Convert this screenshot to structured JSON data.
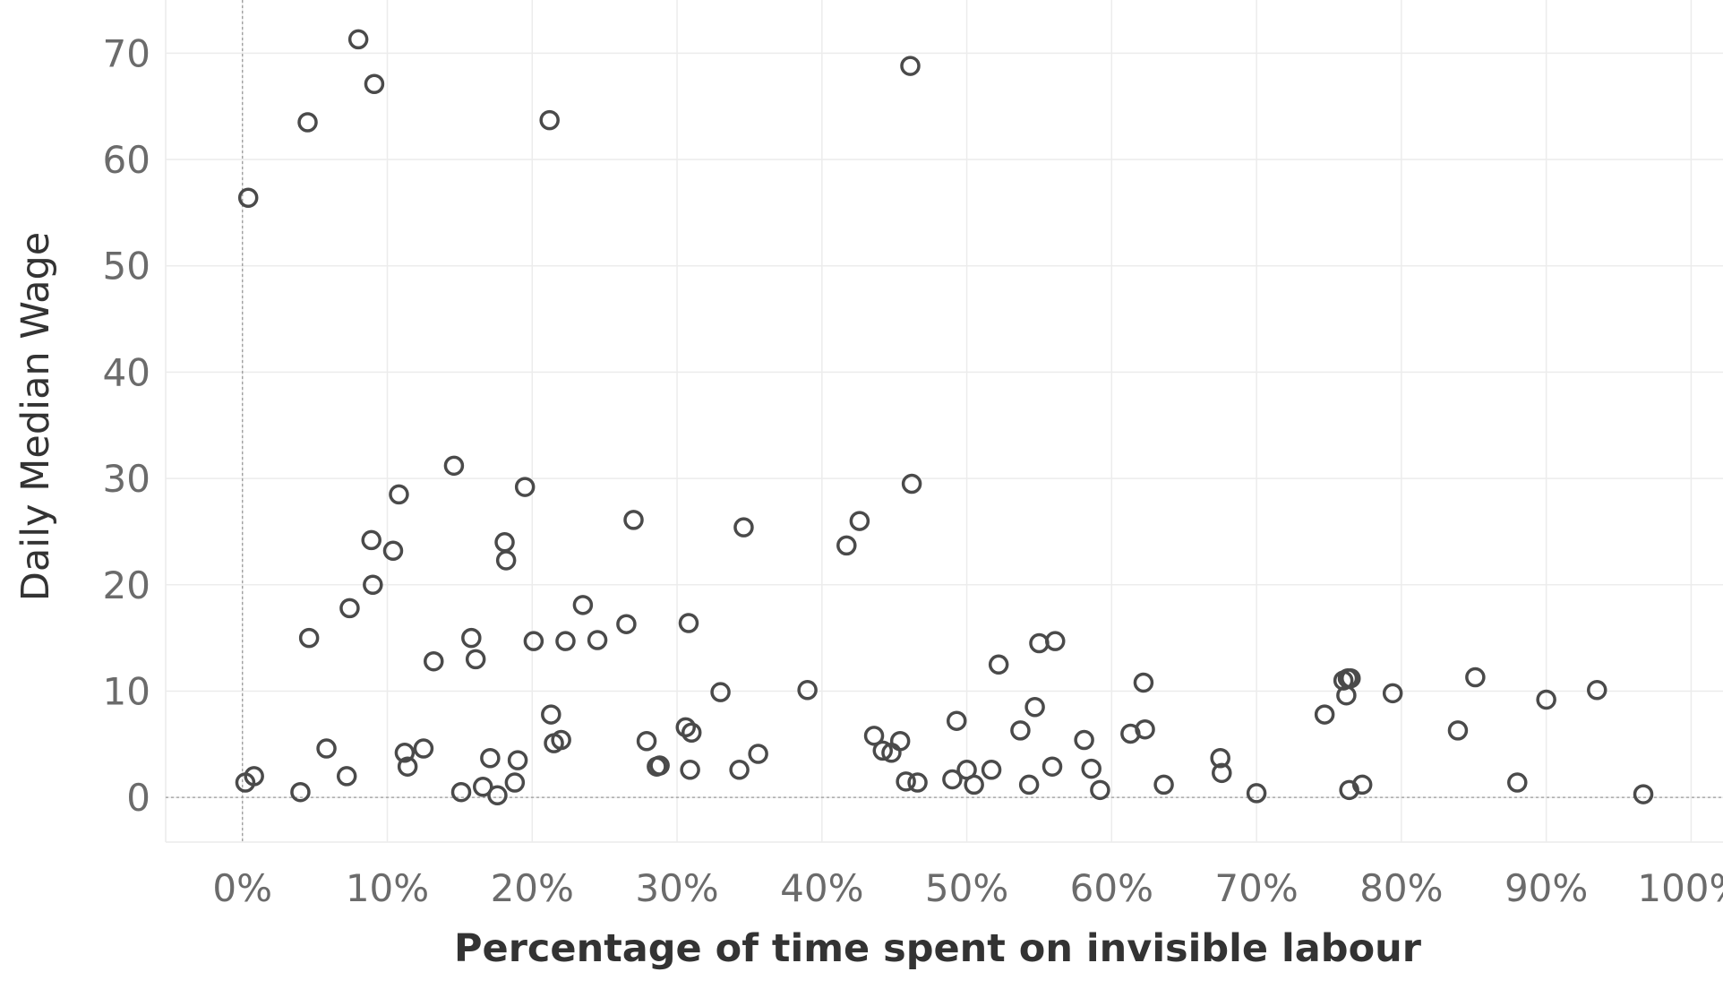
{
  "chart_data": {
    "type": "scatter",
    "xlabel": "Percentage of time spent on invisible labour",
    "ylabel": "Daily Median Wage",
    "xlim": [
      -0.053,
      1.022
    ],
    "ylim": [
      -4.2,
      75
    ],
    "x_ticks": [
      {
        "value": 0.0,
        "label": "0%"
      },
      {
        "value": 0.1,
        "label": "10%"
      },
      {
        "value": 0.2,
        "label": "20%"
      },
      {
        "value": 0.3,
        "label": "30%"
      },
      {
        "value": 0.4,
        "label": "40%"
      },
      {
        "value": 0.5,
        "label": "50%"
      },
      {
        "value": 0.6,
        "label": "60%"
      },
      {
        "value": 0.7,
        "label": "70%"
      },
      {
        "value": 0.8,
        "label": "80%"
      },
      {
        "value": 0.9,
        "label": "90%"
      },
      {
        "value": 1.0,
        "label": "100%"
      }
    ],
    "y_ticks": [
      {
        "value": 0,
        "label": "0"
      },
      {
        "value": 10,
        "label": "10"
      },
      {
        "value": 20,
        "label": "20"
      },
      {
        "value": 30,
        "label": "30"
      },
      {
        "value": 40,
        "label": "40"
      },
      {
        "value": 50,
        "label": "50"
      },
      {
        "value": 60,
        "label": "60"
      },
      {
        "value": 70,
        "label": "70"
      }
    ],
    "grid": true,
    "zero_reference_lines": true,
    "colors": {
      "marker_stroke": "#4a4a4a",
      "grid": "#ececec",
      "zero_line": "#9a9a9a"
    },
    "points": [
      {
        "x": 0.002,
        "y": 1.4
      },
      {
        "x": 0.004,
        "y": 56.4
      },
      {
        "x": 0.008,
        "y": 2.0
      },
      {
        "x": 0.04,
        "y": 0.5
      },
      {
        "x": 0.045,
        "y": 63.5
      },
      {
        "x": 0.046,
        "y": 15.0
      },
      {
        "x": 0.058,
        "y": 4.6
      },
      {
        "x": 0.072,
        "y": 2.0
      },
      {
        "x": 0.074,
        "y": 17.8
      },
      {
        "x": 0.08,
        "y": 71.3
      },
      {
        "x": 0.089,
        "y": 24.2
      },
      {
        "x": 0.09,
        "y": 20.0
      },
      {
        "x": 0.091,
        "y": 67.1
      },
      {
        "x": 0.104,
        "y": 23.2
      },
      {
        "x": 0.108,
        "y": 28.5
      },
      {
        "x": 0.112,
        "y": 4.2
      },
      {
        "x": 0.114,
        "y": 2.9
      },
      {
        "x": 0.125,
        "y": 4.6
      },
      {
        "x": 0.132,
        "y": 12.8
      },
      {
        "x": 0.146,
        "y": 31.2
      },
      {
        "x": 0.151,
        "y": 0.5
      },
      {
        "x": 0.158,
        "y": 15.0
      },
      {
        "x": 0.161,
        "y": 13.0
      },
      {
        "x": 0.166,
        "y": 1.0
      },
      {
        "x": 0.171,
        "y": 3.7
      },
      {
        "x": 0.176,
        "y": 0.2
      },
      {
        "x": 0.181,
        "y": 24.0
      },
      {
        "x": 0.182,
        "y": 22.3
      },
      {
        "x": 0.188,
        "y": 1.4
      },
      {
        "x": 0.19,
        "y": 3.5
      },
      {
        "x": 0.195,
        "y": 29.2
      },
      {
        "x": 0.201,
        "y": 14.7
      },
      {
        "x": 0.212,
        "y": 63.7
      },
      {
        "x": 0.213,
        "y": 7.8
      },
      {
        "x": 0.215,
        "y": 5.1
      },
      {
        "x": 0.22,
        "y": 5.4
      },
      {
        "x": 0.223,
        "y": 14.7
      },
      {
        "x": 0.235,
        "y": 18.1
      },
      {
        "x": 0.245,
        "y": 14.8
      },
      {
        "x": 0.265,
        "y": 16.3
      },
      {
        "x": 0.27,
        "y": 26.1
      },
      {
        "x": 0.279,
        "y": 5.3
      },
      {
        "x": 0.286,
        "y": 2.9
      },
      {
        "x": 0.288,
        "y": 3.0
      },
      {
        "x": 0.306,
        "y": 6.6
      },
      {
        "x": 0.308,
        "y": 16.4
      },
      {
        "x": 0.309,
        "y": 2.6
      },
      {
        "x": 0.31,
        "y": 6.1
      },
      {
        "x": 0.33,
        "y": 9.9
      },
      {
        "x": 0.343,
        "y": 2.6
      },
      {
        "x": 0.346,
        "y": 25.4
      },
      {
        "x": 0.356,
        "y": 4.1
      },
      {
        "x": 0.39,
        "y": 10.1
      },
      {
        "x": 0.417,
        "y": 23.7
      },
      {
        "x": 0.426,
        "y": 26.0
      },
      {
        "x": 0.436,
        "y": 5.8
      },
      {
        "x": 0.442,
        "y": 4.4
      },
      {
        "x": 0.448,
        "y": 4.2
      },
      {
        "x": 0.454,
        "y": 5.3
      },
      {
        "x": 0.458,
        "y": 1.5
      },
      {
        "x": 0.461,
        "y": 68.8
      },
      {
        "x": 0.462,
        "y": 29.5
      },
      {
        "x": 0.466,
        "y": 1.4
      },
      {
        "x": 0.49,
        "y": 1.7
      },
      {
        "x": 0.493,
        "y": 7.2
      },
      {
        "x": 0.5,
        "y": 2.6
      },
      {
        "x": 0.505,
        "y": 1.2
      },
      {
        "x": 0.517,
        "y": 2.6
      },
      {
        "x": 0.522,
        "y": 12.5
      },
      {
        "x": 0.537,
        "y": 6.3
      },
      {
        "x": 0.543,
        "y": 1.2
      },
      {
        "x": 0.547,
        "y": 8.5
      },
      {
        "x": 0.55,
        "y": 14.5
      },
      {
        "x": 0.559,
        "y": 2.9
      },
      {
        "x": 0.561,
        "y": 14.7
      },
      {
        "x": 0.581,
        "y": 5.4
      },
      {
        "x": 0.586,
        "y": 2.7
      },
      {
        "x": 0.592,
        "y": 0.7
      },
      {
        "x": 0.613,
        "y": 6.0
      },
      {
        "x": 0.622,
        "y": 10.8
      },
      {
        "x": 0.623,
        "y": 6.4
      },
      {
        "x": 0.636,
        "y": 1.2
      },
      {
        "x": 0.675,
        "y": 3.7
      },
      {
        "x": 0.676,
        "y": 2.3
      },
      {
        "x": 0.7,
        "y": 0.4
      },
      {
        "x": 0.747,
        "y": 7.8
      },
      {
        "x": 0.76,
        "y": 11.0
      },
      {
        "x": 0.762,
        "y": 9.6
      },
      {
        "x": 0.763,
        "y": 11.2
      },
      {
        "x": 0.764,
        "y": 0.7
      },
      {
        "x": 0.765,
        "y": 11.2
      },
      {
        "x": 0.773,
        "y": 1.2
      },
      {
        "x": 0.794,
        "y": 9.8
      },
      {
        "x": 0.839,
        "y": 6.3
      },
      {
        "x": 0.851,
        "y": 11.3
      },
      {
        "x": 0.88,
        "y": 1.4
      },
      {
        "x": 0.9,
        "y": 9.2
      },
      {
        "x": 0.935,
        "y": 10.1
      },
      {
        "x": 0.967,
        "y": 0.3
      }
    ]
  }
}
